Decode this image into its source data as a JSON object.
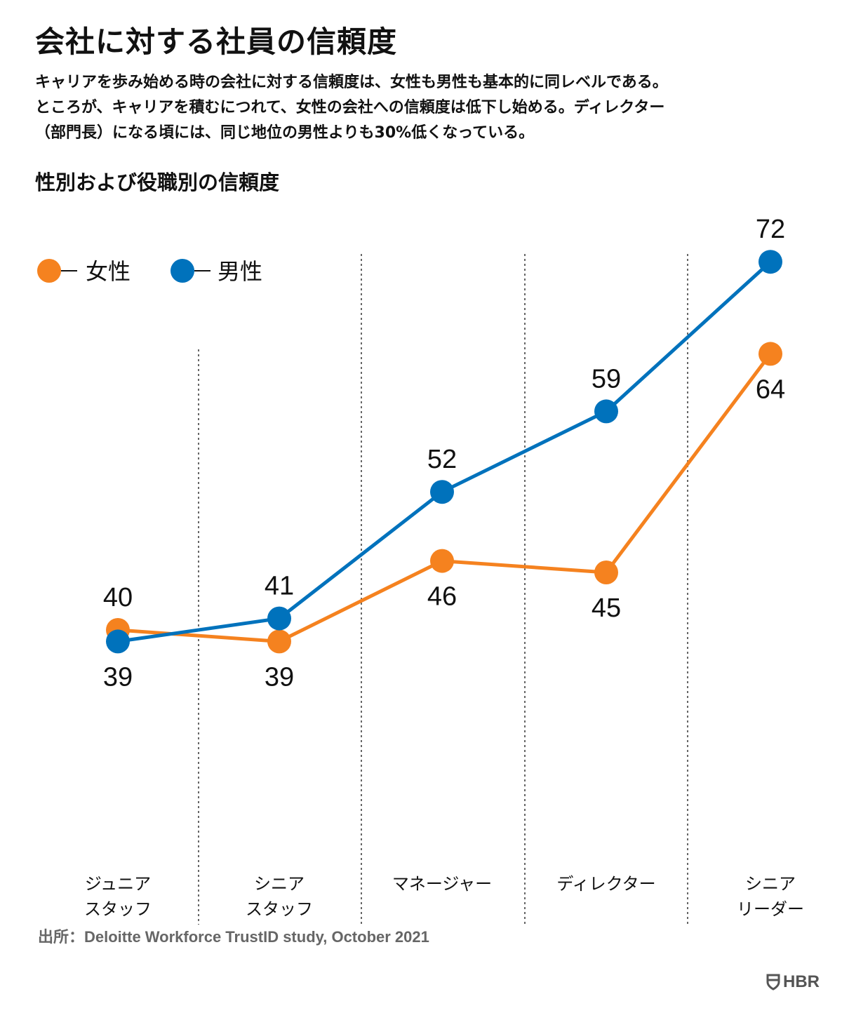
{
  "title": "会社に対する社員の信頼度",
  "subtitle_lines": [
    "キャリアを歩み始める時の会社に対する信頼度は、女性も男性も基本的に同レベルである。",
    "ところが、キャリアを積むにつれて、女性の会社への信頼度は低下し始める。ディレクター",
    "（部門長）になる頃には、同じ地位の男性よりも30%低くなっている。"
  ],
  "chart_heading": "性別および役職別の信頼度",
  "source": "出所：Deloitte Workforce TrustID study, October 2021",
  "logo_text": "HBR",
  "colors": {
    "women": "#F5821F",
    "men": "#0072BC",
    "text": "#111111",
    "divider": "#333333"
  },
  "chart_data": {
    "type": "line",
    "categories": [
      [
        "ジュニア",
        "スタッフ"
      ],
      [
        "シニア",
        "スタッフ"
      ],
      [
        "マネージャー"
      ],
      [
        "ディレクター"
      ],
      [
        "シニア",
        "リーダー"
      ]
    ],
    "series": [
      {
        "name": "女性",
        "key": "women",
        "values": [
          40,
          39,
          46,
          45,
          64
        ]
      },
      {
        "name": "男性",
        "key": "men",
        "values": [
          39,
          41,
          52,
          59,
          72
        ]
      }
    ],
    "ylim": [
      30,
      80
    ],
    "legend": "top-left",
    "grid": false,
    "title": "",
    "xlabel": "",
    "ylabel": ""
  }
}
